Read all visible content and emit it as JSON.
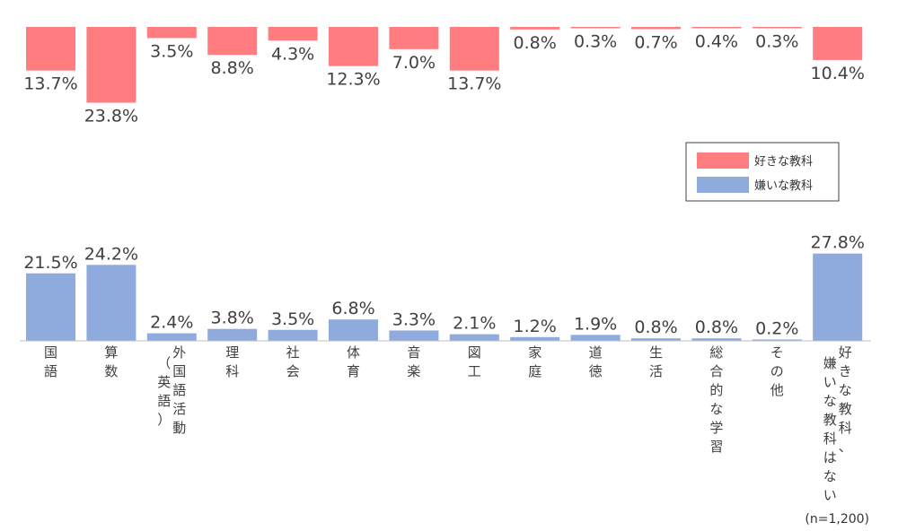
{
  "chart_data": {
    "type": "bar",
    "categories": [
      {
        "label": "国語"
      },
      {
        "label": "算数"
      },
      {
        "label": "外国語活動",
        "sub": "（英語）"
      },
      {
        "label": "理科"
      },
      {
        "label": "社会"
      },
      {
        "label": "体育"
      },
      {
        "label": "音楽"
      },
      {
        "label": "図工"
      },
      {
        "label": "家庭"
      },
      {
        "label": "道徳"
      },
      {
        "label": "生活"
      },
      {
        "label": "総合的な学習"
      },
      {
        "label": "その他"
      },
      {
        "label": "好きな教科、",
        "sub": "嫌いな教科はない"
      }
    ],
    "series": [
      {
        "name": "好きな教科",
        "color": "#ff7c80",
        "values": [
          13.7,
          23.8,
          3.5,
          8.8,
          4.3,
          12.3,
          7.0,
          13.7,
          0.8,
          0.3,
          0.7,
          0.4,
          0.3,
          10.4
        ],
        "labels": [
          "13.7%",
          "23.8%",
          "3.5%",
          "8.8%",
          "4.3%",
          "12.3%",
          "7.0%",
          "13.7%",
          "0.8%",
          "0.3%",
          "0.7%",
          "0.4%",
          "0.3%",
          "10.4%"
        ]
      },
      {
        "name": "嫌いな教科",
        "color": "#8faadc",
        "values": [
          21.5,
          24.2,
          2.4,
          3.8,
          3.5,
          6.8,
          3.3,
          2.1,
          1.2,
          1.9,
          0.8,
          0.8,
          0.2,
          27.8
        ],
        "labels": [
          "21.5%",
          "24.2%",
          "2.4%",
          "3.8%",
          "3.5%",
          "6.8%",
          "3.3%",
          "2.1%",
          "1.2%",
          "1.9%",
          "0.8%",
          "0.8%",
          "0.2%",
          "27.8%"
        ]
      }
    ],
    "legend_position": "right",
    "note": "(n=1,200)"
  }
}
